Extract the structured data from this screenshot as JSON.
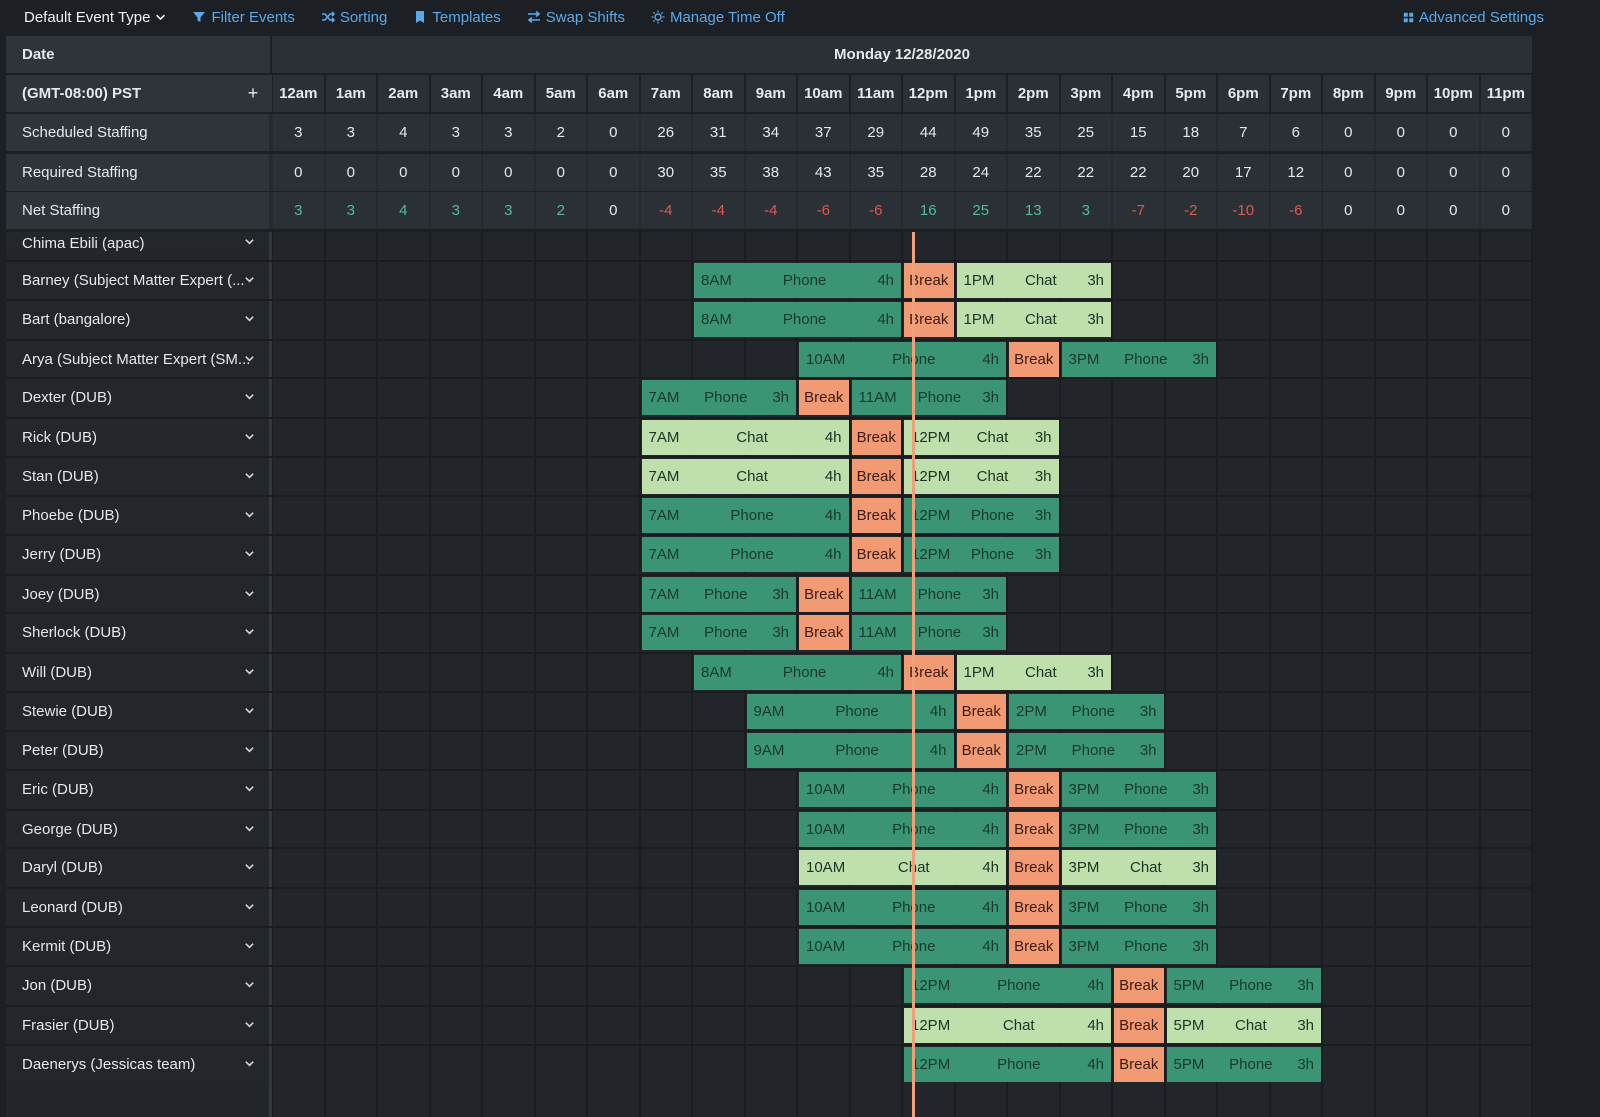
{
  "toolbar": {
    "default_event_type": "Default Event Type",
    "filter_events": "Filter Events",
    "sorting": "Sorting",
    "templates": "Templates",
    "swap_shifts": "Swap Shifts",
    "manage_time_off": "Manage Time Off",
    "advanced_settings": "Advanced Settings"
  },
  "header": {
    "date_label": "Date",
    "date_value": "Monday 12/28/2020",
    "timezone": "(GMT-08:00) PST",
    "add_symbol": "+",
    "hours": [
      "12am",
      "1am",
      "2am",
      "3am",
      "4am",
      "5am",
      "6am",
      "7am",
      "8am",
      "9am",
      "10am",
      "11am",
      "12pm",
      "1pm",
      "2pm",
      "3pm",
      "4pm",
      "5pm",
      "6pm",
      "7pm",
      "8pm",
      "9pm",
      "10pm",
      "11pm"
    ]
  },
  "stats": [
    {
      "label": "Scheduled Staffing",
      "values": [
        3,
        3,
        4,
        3,
        3,
        2,
        0,
        26,
        31,
        34,
        37,
        29,
        44,
        49,
        35,
        25,
        15,
        18,
        7,
        6,
        0,
        0,
        0,
        0
      ]
    },
    {
      "label": "Required Staffing",
      "values": [
        0,
        0,
        0,
        0,
        0,
        0,
        0,
        30,
        35,
        38,
        43,
        35,
        28,
        24,
        22,
        22,
        22,
        20,
        17,
        12,
        0,
        0,
        0,
        0
      ]
    },
    {
      "label": "Net Staffing",
      "values": [
        3,
        3,
        4,
        3,
        3,
        2,
        0,
        -4,
        -4,
        -4,
        -6,
        -6,
        16,
        25,
        13,
        3,
        -7,
        -2,
        -10,
        -6,
        0,
        0,
        0,
        0
      ]
    }
  ],
  "colors": {
    "phone": "#3b9474",
    "chat": "#bde0ad",
    "break": "#f29a74",
    "positive": "#4fbf97",
    "negative": "#e0594f",
    "now_line": "#f0a079"
  },
  "current_time_hour": 12.2,
  "agents": [
    {
      "name": "Chima Ebili (apac)",
      "shifts": []
    },
    {
      "name": "Barney (Subject Matter Expert (...",
      "shifts": [
        {
          "start": 8,
          "dur": 4,
          "label": "8AM",
          "type": "Phone",
          "dur_label": "4h"
        },
        {
          "start": 12,
          "dur": 1,
          "type": "Break"
        },
        {
          "start": 13,
          "dur": 3,
          "label": "1PM",
          "type": "Chat",
          "dur_label": "3h"
        }
      ]
    },
    {
      "name": "Bart (bangalore)",
      "shifts": [
        {
          "start": 8,
          "dur": 4,
          "label": "8AM",
          "type": "Phone",
          "dur_label": "4h"
        },
        {
          "start": 12,
          "dur": 1,
          "type": "Break"
        },
        {
          "start": 13,
          "dur": 3,
          "label": "1PM",
          "type": "Chat",
          "dur_label": "3h"
        }
      ]
    },
    {
      "name": "Arya (Subject Matter Expert (SM...",
      "shifts": [
        {
          "start": 10,
          "dur": 4,
          "label": "10AM",
          "type": "Phone",
          "dur_label": "4h"
        },
        {
          "start": 14,
          "dur": 1,
          "type": "Break"
        },
        {
          "start": 15,
          "dur": 3,
          "label": "3PM",
          "type": "Phone",
          "dur_label": "3h"
        }
      ]
    },
    {
      "name": "Dexter (DUB)",
      "shifts": [
        {
          "start": 7,
          "dur": 3,
          "label": "7AM",
          "type": "Phone",
          "dur_label": "3h"
        },
        {
          "start": 10,
          "dur": 1,
          "type": "Break"
        },
        {
          "start": 11,
          "dur": 3,
          "label": "11AM",
          "type": "Phone",
          "dur_label": "3h"
        }
      ]
    },
    {
      "name": "Rick (DUB)",
      "shifts": [
        {
          "start": 7,
          "dur": 4,
          "label": "7AM",
          "type": "Chat",
          "dur_label": "4h"
        },
        {
          "start": 11,
          "dur": 1,
          "type": "Break"
        },
        {
          "start": 12,
          "dur": 3,
          "label": "12PM",
          "type": "Chat",
          "dur_label": "3h"
        }
      ]
    },
    {
      "name": "Stan (DUB)",
      "shifts": [
        {
          "start": 7,
          "dur": 4,
          "label": "7AM",
          "type": "Chat",
          "dur_label": "4h"
        },
        {
          "start": 11,
          "dur": 1,
          "type": "Break"
        },
        {
          "start": 12,
          "dur": 3,
          "label": "12PM",
          "type": "Chat",
          "dur_label": "3h"
        }
      ]
    },
    {
      "name": "Phoebe (DUB)",
      "shifts": [
        {
          "start": 7,
          "dur": 4,
          "label": "7AM",
          "type": "Phone",
          "dur_label": "4h"
        },
        {
          "start": 11,
          "dur": 1,
          "type": "Break"
        },
        {
          "start": 12,
          "dur": 3,
          "label": "12PM",
          "type": "Phone",
          "dur_label": "3h"
        }
      ]
    },
    {
      "name": "Jerry (DUB)",
      "shifts": [
        {
          "start": 7,
          "dur": 4,
          "label": "7AM",
          "type": "Phone",
          "dur_label": "4h"
        },
        {
          "start": 11,
          "dur": 1,
          "type": "Break"
        },
        {
          "start": 12,
          "dur": 3,
          "label": "12PM",
          "type": "Phone",
          "dur_label": "3h"
        }
      ]
    },
    {
      "name": "Joey (DUB)",
      "shifts": [
        {
          "start": 7,
          "dur": 3,
          "label": "7AM",
          "type": "Phone",
          "dur_label": "3h"
        },
        {
          "start": 10,
          "dur": 1,
          "type": "Break"
        },
        {
          "start": 11,
          "dur": 3,
          "label": "11AM",
          "type": "Phone",
          "dur_label": "3h"
        }
      ]
    },
    {
      "name": "Sherlock (DUB)",
      "shifts": [
        {
          "start": 7,
          "dur": 3,
          "label": "7AM",
          "type": "Phone",
          "dur_label": "3h"
        },
        {
          "start": 10,
          "dur": 1,
          "type": "Break"
        },
        {
          "start": 11,
          "dur": 3,
          "label": "11AM",
          "type": "Phone",
          "dur_label": "3h"
        }
      ]
    },
    {
      "name": "Will (DUB)",
      "shifts": [
        {
          "start": 8,
          "dur": 4,
          "label": "8AM",
          "type": "Phone",
          "dur_label": "4h"
        },
        {
          "start": 12,
          "dur": 1,
          "type": "Break"
        },
        {
          "start": 13,
          "dur": 3,
          "label": "1PM",
          "type": "Chat",
          "dur_label": "3h"
        }
      ]
    },
    {
      "name": "Stewie (DUB)",
      "shifts": [
        {
          "start": 9,
          "dur": 4,
          "label": "9AM",
          "type": "Phone",
          "dur_label": "4h"
        },
        {
          "start": 13,
          "dur": 1,
          "type": "Break"
        },
        {
          "start": 14,
          "dur": 3,
          "label": "2PM",
          "type": "Phone",
          "dur_label": "3h"
        }
      ]
    },
    {
      "name": "Peter (DUB)",
      "shifts": [
        {
          "start": 9,
          "dur": 4,
          "label": "9AM",
          "type": "Phone",
          "dur_label": "4h"
        },
        {
          "start": 13,
          "dur": 1,
          "type": "Break"
        },
        {
          "start": 14,
          "dur": 3,
          "label": "2PM",
          "type": "Phone",
          "dur_label": "3h"
        }
      ]
    },
    {
      "name": "Eric (DUB)",
      "shifts": [
        {
          "start": 10,
          "dur": 4,
          "label": "10AM",
          "type": "Phone",
          "dur_label": "4h"
        },
        {
          "start": 14,
          "dur": 1,
          "type": "Break"
        },
        {
          "start": 15,
          "dur": 3,
          "label": "3PM",
          "type": "Phone",
          "dur_label": "3h"
        }
      ]
    },
    {
      "name": "George (DUB)",
      "shifts": [
        {
          "start": 10,
          "dur": 4,
          "label": "10AM",
          "type": "Phone",
          "dur_label": "4h"
        },
        {
          "start": 14,
          "dur": 1,
          "type": "Break"
        },
        {
          "start": 15,
          "dur": 3,
          "label": "3PM",
          "type": "Phone",
          "dur_label": "3h"
        }
      ]
    },
    {
      "name": "Daryl (DUB)",
      "shifts": [
        {
          "start": 10,
          "dur": 4,
          "label": "10AM",
          "type": "Chat",
          "dur_label": "4h"
        },
        {
          "start": 14,
          "dur": 1,
          "type": "Break"
        },
        {
          "start": 15,
          "dur": 3,
          "label": "3PM",
          "type": "Chat",
          "dur_label": "3h"
        }
      ]
    },
    {
      "name": "Leonard (DUB)",
      "shifts": [
        {
          "start": 10,
          "dur": 4,
          "label": "10AM",
          "type": "Phone",
          "dur_label": "4h"
        },
        {
          "start": 14,
          "dur": 1,
          "type": "Break"
        },
        {
          "start": 15,
          "dur": 3,
          "label": "3PM",
          "type": "Phone",
          "dur_label": "3h"
        }
      ]
    },
    {
      "name": "Kermit (DUB)",
      "shifts": [
        {
          "start": 10,
          "dur": 4,
          "label": "10AM",
          "type": "Phone",
          "dur_label": "4h"
        },
        {
          "start": 14,
          "dur": 1,
          "type": "Break"
        },
        {
          "start": 15,
          "dur": 3,
          "label": "3PM",
          "type": "Phone",
          "dur_label": "3h"
        }
      ]
    },
    {
      "name": "Jon (DUB)",
      "shifts": [
        {
          "start": 12,
          "dur": 4,
          "label": "12PM",
          "type": "Phone",
          "dur_label": "4h"
        },
        {
          "start": 16,
          "dur": 1,
          "type": "Break"
        },
        {
          "start": 17,
          "dur": 3,
          "label": "5PM",
          "type": "Phone",
          "dur_label": "3h"
        }
      ]
    },
    {
      "name": "Frasier (DUB)",
      "shifts": [
        {
          "start": 12,
          "dur": 4,
          "label": "12PM",
          "type": "Chat",
          "dur_label": "4h"
        },
        {
          "start": 16,
          "dur": 1,
          "type": "Break"
        },
        {
          "start": 17,
          "dur": 3,
          "label": "5PM",
          "type": "Chat",
          "dur_label": "3h"
        }
      ]
    },
    {
      "name": "Daenerys (Jessicas team)",
      "shifts": [
        {
          "start": 12,
          "dur": 4,
          "label": "12PM",
          "type": "Phone",
          "dur_label": "4h"
        },
        {
          "start": 16,
          "dur": 1,
          "type": "Break"
        },
        {
          "start": 17,
          "dur": 3,
          "label": "5PM",
          "type": "Phone",
          "dur_label": "3h"
        }
      ]
    }
  ]
}
